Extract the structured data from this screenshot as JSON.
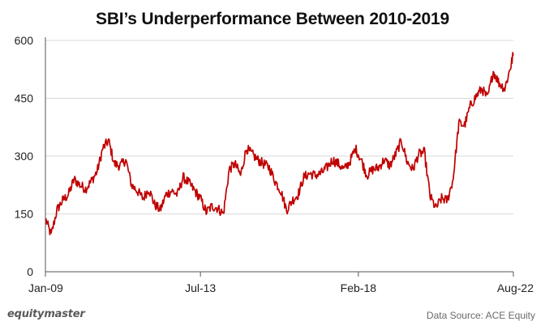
{
  "footer": {
    "brand": "equitymaster",
    "source": "Data Source: ACE Equity"
  },
  "colors": {
    "line": "#c00000",
    "grid": "#d9d9d9",
    "axis": "#555555"
  },
  "chart_data": {
    "type": "line",
    "title": "SBI’s Underperformance Between 2010-2019",
    "xlabel": "",
    "ylabel": "",
    "ylim": [
      0,
      600
    ],
    "yticks": [
      0,
      150,
      300,
      450,
      600
    ],
    "xlim": [
      "2009-01",
      "2022-08"
    ],
    "xticks": [
      {
        "label": "Jan-09",
        "x": "2009-01"
      },
      {
        "label": "Jul-13",
        "x": "2013-07"
      },
      {
        "label": "Feb-18",
        "x": "2018-02"
      },
      {
        "label": "Aug-22",
        "x": "2022-08"
      }
    ],
    "grid": true,
    "legend": "none",
    "series": [
      {
        "x": [
          "2009-01",
          "2009-03",
          "2009-05",
          "2009-07",
          "2009-09",
          "2009-11",
          "2010-01",
          "2010-03",
          "2010-05",
          "2010-07",
          "2010-09",
          "2010-11",
          "2011-01",
          "2011-03",
          "2011-05",
          "2011-07",
          "2011-09",
          "2011-11",
          "2012-01",
          "2012-03",
          "2012-05",
          "2012-07",
          "2012-09",
          "2012-11",
          "2013-01",
          "2013-03",
          "2013-05",
          "2013-07",
          "2013-09",
          "2013-11",
          "2014-01",
          "2014-03",
          "2014-05",
          "2014-07",
          "2014-09",
          "2014-11",
          "2015-01",
          "2015-03",
          "2015-05",
          "2015-07",
          "2015-09",
          "2015-11",
          "2016-01",
          "2016-03",
          "2016-05",
          "2016-07",
          "2016-09",
          "2016-11",
          "2017-01",
          "2017-03",
          "2017-05",
          "2017-07",
          "2017-09",
          "2017-11",
          "2018-01",
          "2018-03",
          "2018-05",
          "2018-07",
          "2018-09",
          "2018-11",
          "2019-01",
          "2019-03",
          "2019-05",
          "2019-07",
          "2019-09",
          "2019-11",
          "2020-01",
          "2020-03",
          "2020-05",
          "2020-07",
          "2020-09",
          "2020-11",
          "2021-01",
          "2021-03",
          "2021-05",
          "2021-07",
          "2021-09",
          "2021-11",
          "2022-01",
          "2022-03",
          "2022-05",
          "2022-07",
          "2022-08"
        ],
        "values": [
          138,
          95,
          160,
          185,
          200,
          240,
          225,
          215,
          235,
          260,
          320,
          340,
          280,
          275,
          290,
          225,
          210,
          190,
          215,
          175,
          160,
          200,
          210,
          200,
          245,
          230,
          210,
          190,
          155,
          170,
          165,
          150,
          265,
          280,
          250,
          320,
          305,
          290,
          280,
          270,
          235,
          210,
          160,
          185,
          200,
          245,
          255,
          250,
          255,
          270,
          290,
          280,
          265,
          285,
          320,
          290,
          250,
          265,
          270,
          290,
          275,
          305,
          340,
          285,
          265,
          305,
          310,
          195,
          165,
          190,
          185,
          240,
          385,
          380,
          430,
          455,
          475,
          450,
          520,
          490,
          475,
          530,
          565
        ]
      }
    ]
  }
}
